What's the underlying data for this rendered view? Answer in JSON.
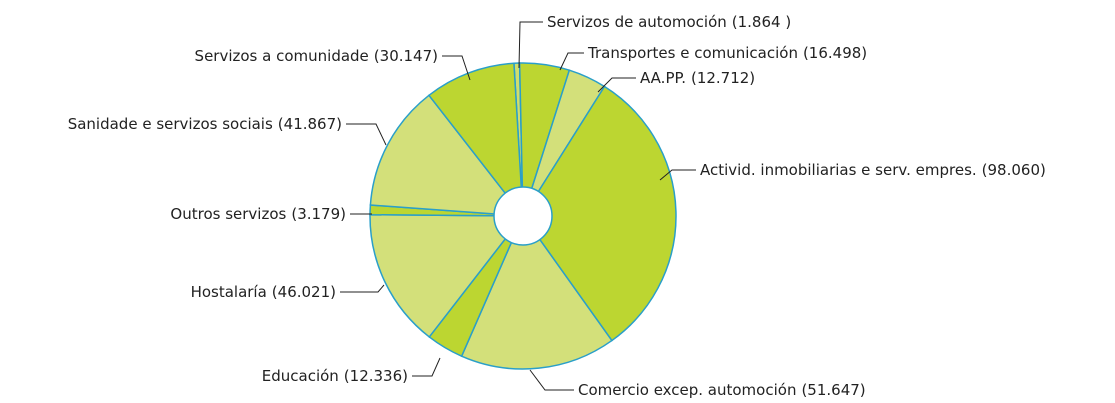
{
  "chart_data": {
    "type": "donut",
    "categories": [
      "Servizos de automoción",
      "Transportes e comunicación",
      "AA.PP.",
      "Activid. inmobiliarias e serv. empres.",
      "Comercio excep. automoción",
      "Educación",
      "Hostalaría",
      "Outros servizos",
      "Sanidade e servizos sociais",
      "Servizos a comunidade"
    ],
    "values": [
      1864,
      16498,
      12712,
      98060,
      51647,
      12336,
      46021,
      3179,
      41867,
      30147
    ],
    "value_labels": [
      "(1.864 )",
      "(16.498)",
      "(12.712)",
      "(98.060)",
      "(51.647)",
      "(12.336)",
      "(46.021)",
      "(3.179)",
      "(41.867)",
      "(30.147)"
    ],
    "colors": [
      "#cfde6e",
      "#bcd631",
      "#d3e07a",
      "#bcd631",
      "#d3e07a",
      "#bcd631",
      "#d3e07a",
      "#bcd631",
      "#d3e07a",
      "#bcd631"
    ],
    "edge_color": "#2a9fc9"
  }
}
